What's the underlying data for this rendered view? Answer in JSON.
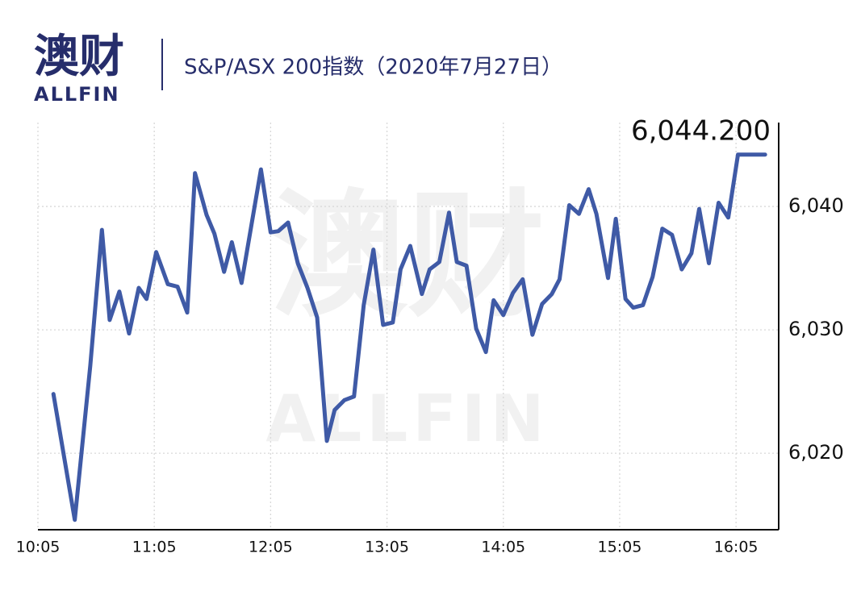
{
  "logo": {
    "name": "澳财",
    "latin": "ALLFIN"
  },
  "chart_data": {
    "type": "line",
    "title": "S&P/ASX 200指数（2020年7月27日）",
    "x": [
      "10:13",
      "10:24",
      "10:32",
      "10:38",
      "10:42",
      "10:47",
      "10:52",
      "10:57",
      "11:01",
      "11:06",
      "11:12",
      "11:17",
      "11:22",
      "11:26",
      "11:32",
      "11:36",
      "11:41",
      "11:45",
      "11:50",
      "11:55",
      "12:00",
      "12:05",
      "12:09",
      "12:14",
      "12:19",
      "12:24",
      "12:29",
      "12:34",
      "12:38",
      "12:43",
      "12:48",
      "12:53",
      "12:58",
      "13:03",
      "13:08",
      "13:12",
      "13:17",
      "13:23",
      "13:27",
      "13:32",
      "13:37",
      "13:41",
      "13:46",
      "13:51",
      "13:56",
      "14:00",
      "14:05",
      "14:10",
      "14:15",
      "14:20",
      "14:25",
      "14:30",
      "14:34",
      "14:39",
      "14:44",
      "14:49",
      "14:53",
      "14:59",
      "15:03",
      "15:08",
      "15:12",
      "15:17",
      "15:22",
      "15:27",
      "15:32",
      "15:37",
      "15:42",
      "15:46",
      "15:51",
      "15:56",
      "16:01",
      "16:06",
      "16:20"
    ],
    "series": [
      {
        "name": "S&P/ASX 200",
        "color": "#3f5aa6",
        "values": [
          6024.8,
          6014.6,
          6027.1,
          6038.1,
          6030.8,
          6033.1,
          6029.7,
          6033.4,
          6032.5,
          6036.3,
          6033.7,
          6033.5,
          6031.4,
          6042.7,
          6039.3,
          6037.8,
          6034.7,
          6037.1,
          6033.8,
          6038.4,
          6043.0,
          6037.9,
          6038.0,
          6038.7,
          6035.4,
          6033.4,
          6031.0,
          6021.0,
          6023.5,
          6024.3,
          6024.6,
          6032.0,
          6036.5,
          6030.4,
          6030.6,
          6034.9,
          6036.8,
          6032.9,
          6034.9,
          6035.5,
          6039.5,
          6035.5,
          6035.2,
          6030.1,
          6028.2,
          6032.4,
          6031.2,
          6033.0,
          6034.1,
          6029.6,
          6032.1,
          6032.9,
          6034.1,
          6040.1,
          6039.4,
          6041.4,
          6039.4,
          6034.2,
          6039.0,
          6032.5,
          6031.8,
          6032.0,
          6034.3,
          6038.2,
          6037.7,
          6034.9,
          6036.2,
          6039.8,
          6035.4,
          6040.3,
          6039.1,
          6044.2,
          6044.2
        ]
      }
    ],
    "annotation": {
      "value": 6044.2,
      "label": "6,044.200"
    },
    "xlim": [
      "10:05",
      "16:27"
    ],
    "xticks": [
      "10:05",
      "11:05",
      "12:05",
      "13:05",
      "14:05",
      "15:05",
      "16:05"
    ],
    "ylim": [
      6013.8,
      6046.8
    ],
    "yticks": [
      {
        "value": 6020,
        "label": "6,020"
      },
      {
        "value": 6030,
        "label": "6,030"
      },
      {
        "value": 6040,
        "label": "6,040"
      }
    ],
    "grid": true
  }
}
